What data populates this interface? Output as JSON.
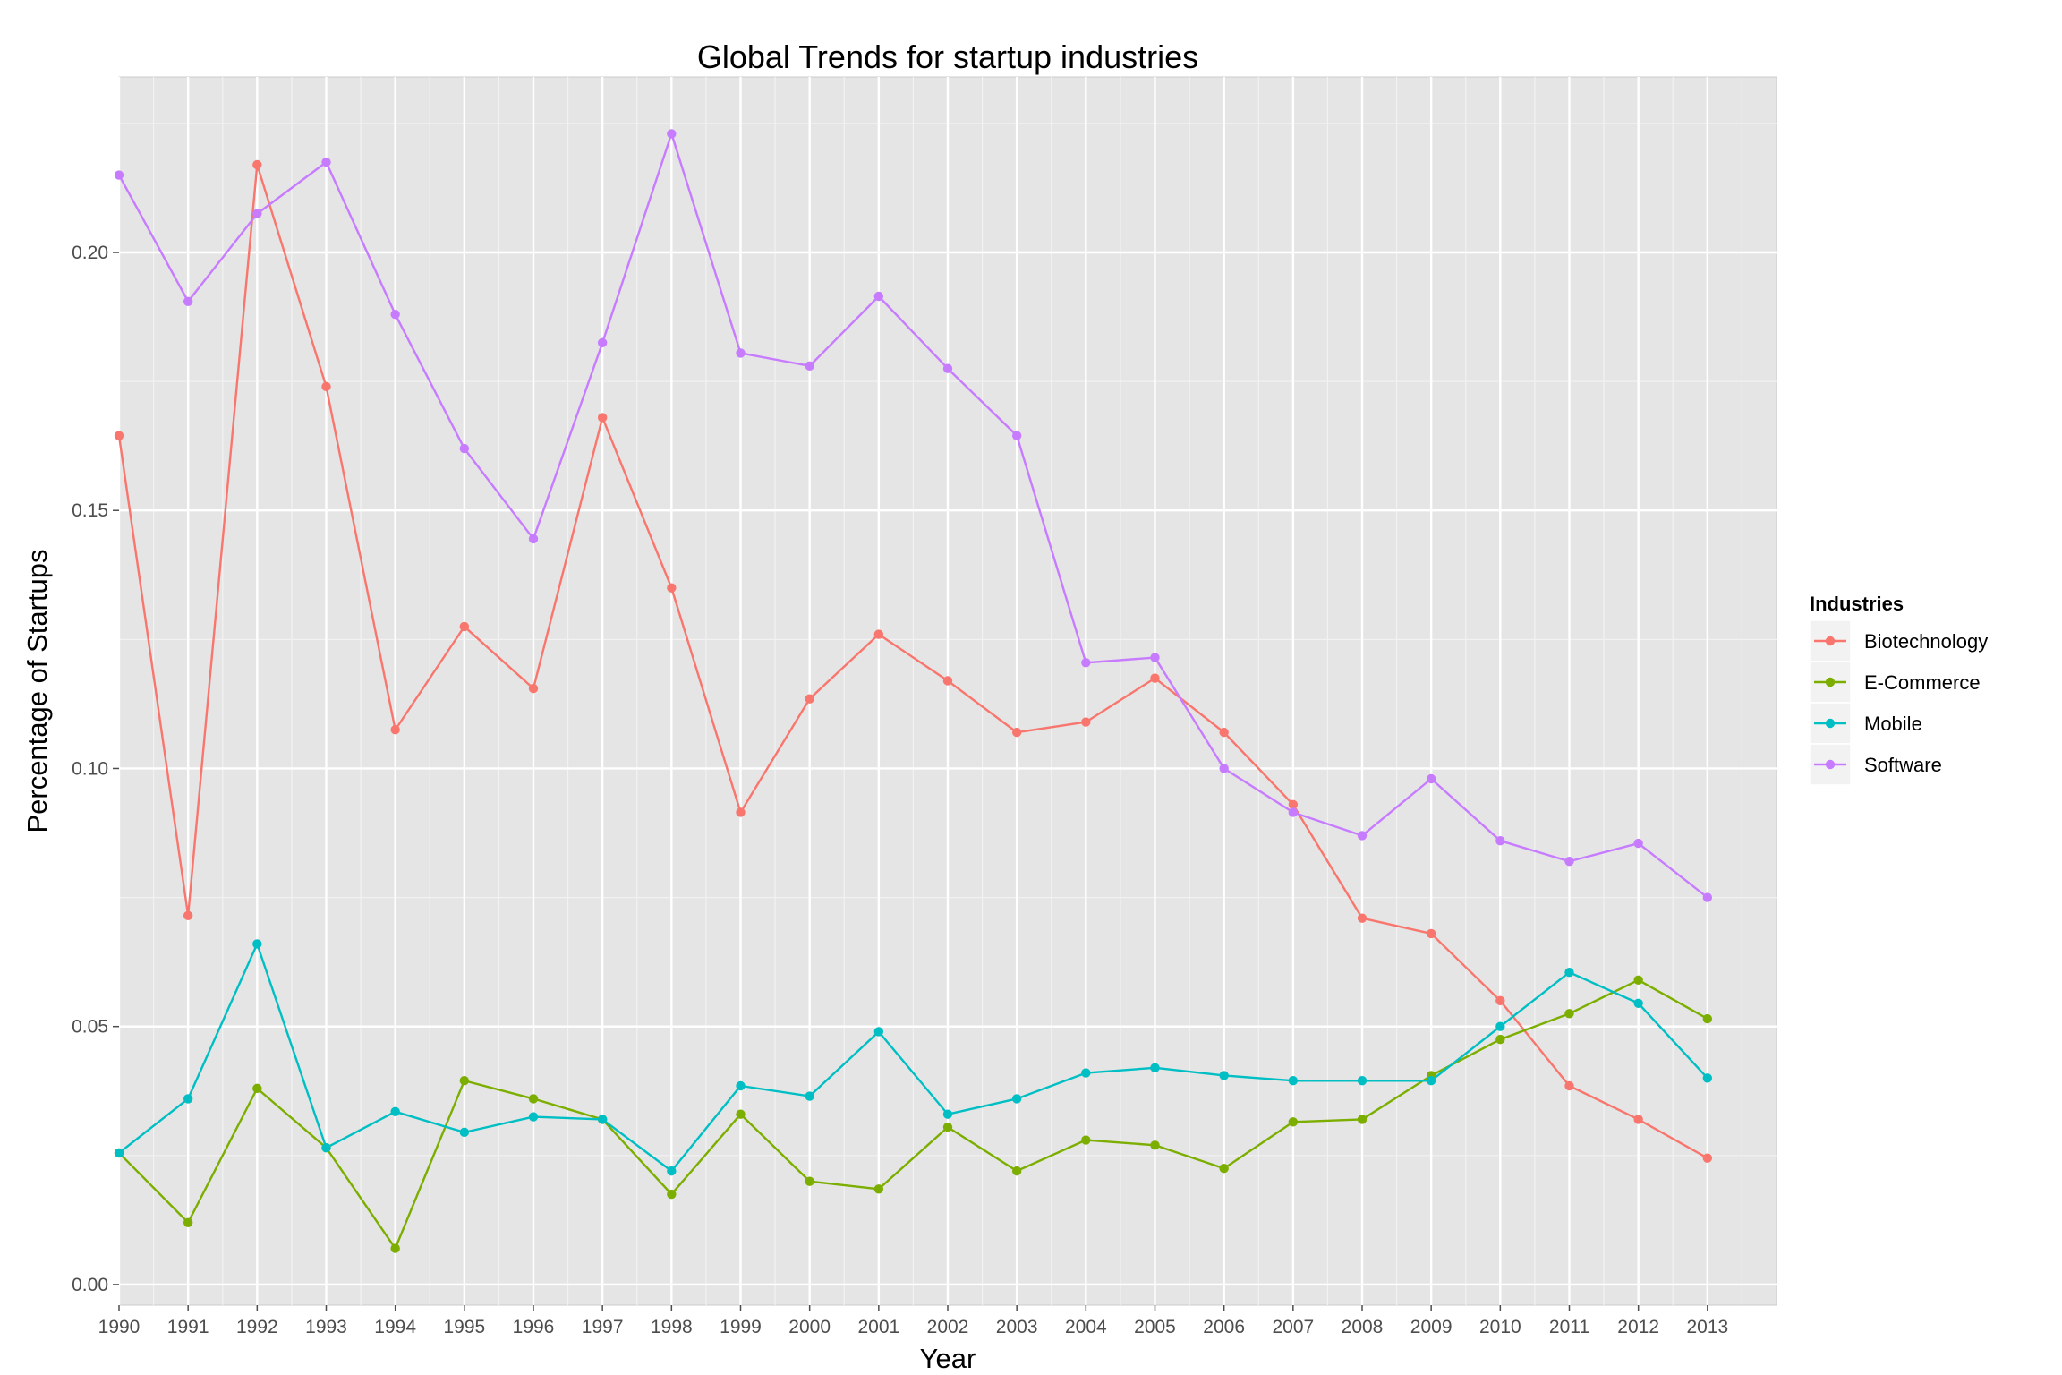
{
  "chart_data": {
    "type": "line",
    "title": "Global Trends for startup industries",
    "xlabel": "Year",
    "ylabel": "Percentage of Startups",
    "x": [
      1990,
      1991,
      1992,
      1993,
      1994,
      1995,
      1996,
      1997,
      1998,
      1999,
      2000,
      2001,
      2002,
      2003,
      2004,
      2005,
      2006,
      2007,
      2008,
      2009,
      2010,
      2011,
      2012,
      2013
    ],
    "x_tick_labels": [
      "1990",
      "1991",
      "1992",
      "1993",
      "1994",
      "1995",
      "1996",
      "1997",
      "1998",
      "1999",
      "2000",
      "2001",
      "2002",
      "2003",
      "2004",
      "2005",
      "2006",
      "2007",
      "2008",
      "2009",
      "2010",
      "2011",
      "2012",
      "2013"
    ],
    "y_ticks": [
      0.0,
      0.05,
      0.1,
      0.15,
      0.2
    ],
    "y_tick_labels": [
      "0.00",
      "0.05",
      "0.10",
      "0.15",
      "0.20"
    ],
    "xlim": [
      1990,
      2014
    ],
    "ylim": [
      -0.004,
      0.234
    ],
    "grid": true,
    "legend": {
      "title": "Industries",
      "position": "right"
    },
    "series": [
      {
        "name": "Biotechnology",
        "color": "#F8766D",
        "values": [
          0.1645,
          0.0715,
          0.217,
          0.174,
          0.1075,
          0.1275,
          0.1155,
          0.168,
          0.135,
          0.0915,
          0.1135,
          0.126,
          0.117,
          0.107,
          0.109,
          0.1175,
          0.107,
          0.093,
          0.071,
          0.068,
          0.055,
          0.0385,
          0.032,
          0.0245
        ]
      },
      {
        "name": "E-Commerce",
        "color": "#7CAE00",
        "values": [
          0.0255,
          0.012,
          0.038,
          0.0265,
          0.007,
          0.0395,
          0.036,
          0.032,
          0.0175,
          0.033,
          0.02,
          0.0185,
          0.0305,
          0.022,
          0.028,
          0.027,
          0.0225,
          0.0315,
          0.032,
          0.0405,
          0.0475,
          0.0525,
          0.059,
          0.0515
        ]
      },
      {
        "name": "Mobile",
        "color": "#00BFC4",
        "values": [
          0.0255,
          0.036,
          0.066,
          0.0265,
          0.0335,
          0.0295,
          0.0325,
          0.032,
          0.022,
          0.0385,
          0.0365,
          0.049,
          0.033,
          0.036,
          0.041,
          0.042,
          0.0405,
          0.0395,
          0.0395,
          0.0395,
          0.05,
          0.0605,
          0.0545,
          0.04
        ]
      },
      {
        "name": "Software",
        "color": "#C77CFF",
        "values": [
          0.215,
          0.1905,
          0.2075,
          0.2175,
          0.188,
          0.162,
          0.1445,
          0.1825,
          0.223,
          0.1805,
          0.178,
          0.1915,
          0.1775,
          0.1645,
          0.1205,
          0.1215,
          0.1,
          0.0915,
          0.087,
          0.098,
          0.086,
          0.082,
          0.0855,
          0.075
        ]
      }
    ]
  }
}
